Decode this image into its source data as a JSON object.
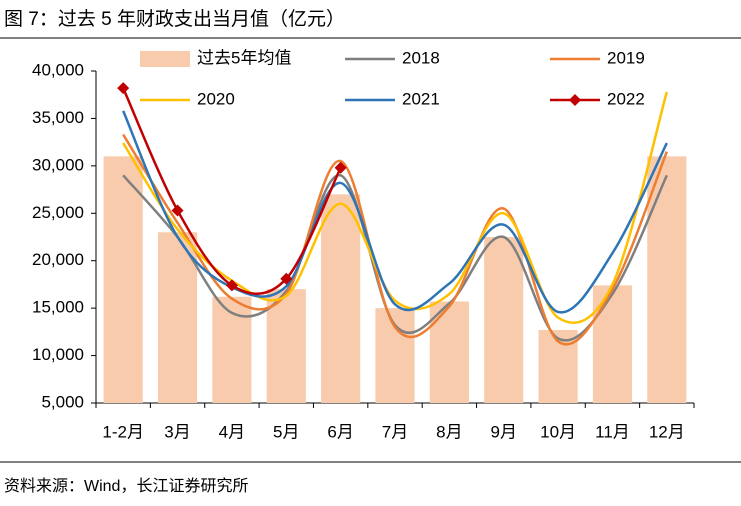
{
  "chart_data": {
    "type": "bar-line",
    "title": "图 7：过去 5 年财政支出当月值（亿元）",
    "source": "资料来源：Wind，长江证券研究所",
    "categories": [
      "1-2月",
      "3月",
      "4月",
      "5月",
      "6月",
      "7月",
      "8月",
      "9月",
      "10月",
      "11月",
      "12月"
    ],
    "series": [
      {
        "name": "过去5年均值",
        "kind": "bar",
        "color": "#f8cbad",
        "values": [
          31000,
          23000,
          16200,
          17000,
          27000,
          15000,
          15700,
          22500,
          12700,
          17400,
          31000
        ]
      },
      {
        "name": "2018",
        "kind": "line",
        "color": "#7f7f7f",
        "values": [
          29000,
          22500,
          14500,
          16800,
          29000,
          13200,
          15500,
          22500,
          11800,
          16500,
          29000
        ]
      },
      {
        "name": "2019",
        "kind": "line",
        "color": "#ed7d31",
        "values": [
          33300,
          24000,
          16000,
          16500,
          30500,
          13000,
          15200,
          25500,
          11500,
          17000,
          31500
        ]
      },
      {
        "name": "2020",
        "kind": "line",
        "color": "#ffc000",
        "values": [
          32400,
          23300,
          17900,
          16300,
          26000,
          15800,
          16500,
          25000,
          14000,
          17500,
          37800
        ]
      },
      {
        "name": "2021",
        "kind": "line",
        "color": "#2e75b6",
        "values": [
          35800,
          22500,
          17200,
          17300,
          28200,
          15400,
          17600,
          23800,
          14600,
          20800,
          32400
        ]
      },
      {
        "name": "2022",
        "kind": "line",
        "color": "#c00000",
        "marker": "diamond",
        "values": [
          38200,
          25300,
          17400,
          18100,
          29800,
          null,
          null,
          null,
          null,
          null,
          null
        ]
      }
    ],
    "ylim": [
      5000,
      40000
    ],
    "yticks": [
      {
        "value": 5000,
        "label": "5,000"
      },
      {
        "value": 10000,
        "label": "10,000"
      },
      {
        "value": 15000,
        "label": "15,000"
      },
      {
        "value": 20000,
        "label": "20,000"
      },
      {
        "value": 25000,
        "label": "25,000"
      },
      {
        "value": 30000,
        "label": "30,000"
      },
      {
        "value": 35000,
        "label": "35,000"
      },
      {
        "value": 40000,
        "label": "40,000"
      }
    ],
    "grid": false
  }
}
